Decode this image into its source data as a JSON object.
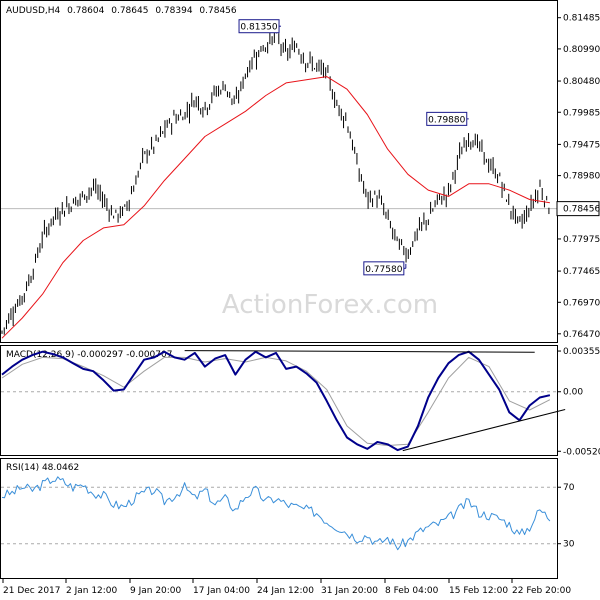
{
  "header": {
    "symbol": "AUDUSD,H4",
    "open": "0.78604",
    "high": "0.78645",
    "low": "0.78394",
    "close": "0.78456"
  },
  "watermark": "ActionForex.com",
  "colors": {
    "price_bars": "#000000",
    "ma": "#e8141a",
    "macd_line": "#00008b",
    "macd_signal": "#a0a0a0",
    "rsi": "#3a8fd9",
    "grid_dash": "#aaaaaa",
    "price_line": "#bbbbbb",
    "label_box": "#1a1a8c"
  },
  "chart_data": [
    {
      "type": "ohlc",
      "title": "AUDUSD,H4 0.78604 0.78645 0.78394 0.78456",
      "ylim": [
        0.7634,
        0.8175
      ],
      "y_ticks": [
        "0.81485",
        "0.80990",
        "0.80480",
        "0.79985",
        "0.79475",
        "0.78980",
        "0.78456",
        "0.77975",
        "0.77465",
        "0.76970",
        "0.76470"
      ],
      "current_price": "0.78456",
      "x_ticks": [
        "21 Dec 2017",
        "2 Jan 12:00",
        "9 Jan 20:00",
        "17 Jan 04:00",
        "24 Jan 12:00",
        "31 Jan 20:00",
        "8 Feb 04:00",
        "15 Feb 12:00",
        "22 Feb 20:00"
      ],
      "series": [
        {
          "name": "close",
          "x": [
            0,
            10,
            20,
            30,
            40,
            50,
            60,
            70,
            80,
            90,
            100,
            110,
            120,
            130,
            140,
            150,
            160,
            170,
            180,
            190,
            200,
            210,
            220,
            230,
            240,
            250,
            260,
            270,
            280,
            290,
            300,
            310,
            320,
            330,
            340,
            350,
            360,
            370,
            380,
            390,
            400,
            410,
            420,
            430,
            440,
            450,
            460,
            470,
            480,
            490,
            500,
            510,
            520,
            530,
            540
          ],
          "y": [
            0.765,
            0.7682,
            0.7705,
            0.7745,
            0.78,
            0.783,
            0.7845,
            0.7855,
            0.7865,
            0.788,
            0.786,
            0.7835,
            0.784,
            0.788,
            0.793,
            0.7945,
            0.797,
            0.799,
            0.7995,
            0.802,
            0.8005,
            0.803,
            0.804,
            0.801,
            0.806,
            0.809,
            0.8105,
            0.812,
            0.809,
            0.8105,
            0.808,
            0.807,
            0.806,
            0.801,
            0.7985,
            0.7915,
            0.786,
            0.7865,
            0.783,
            0.779,
            0.7775,
            0.781,
            0.783,
            0.786,
            0.787,
            0.7925,
            0.796,
            0.7945,
            0.7915,
            0.7895,
            0.785,
            0.782,
            0.7845,
            0.788,
            0.7846
          ]
        },
        {
          "name": "moving average",
          "x": [
            0,
            20,
            40,
            60,
            80,
            100,
            120,
            140,
            160,
            180,
            200,
            220,
            240,
            260,
            280,
            300,
            320,
            340,
            360,
            380,
            400,
            420,
            440,
            460,
            480,
            500,
            520,
            540
          ],
          "y": [
            0.764,
            0.7672,
            0.771,
            0.776,
            0.7795,
            0.7815,
            0.782,
            0.785,
            0.789,
            0.7925,
            0.796,
            0.798,
            0.8,
            0.8025,
            0.8045,
            0.805,
            0.8055,
            0.8035,
            0.7995,
            0.794,
            0.79,
            0.7875,
            0.7865,
            0.7885,
            0.7885,
            0.7875,
            0.786,
            0.7855
          ]
        }
      ],
      "annotations": [
        {
          "label": "0.81350",
          "x": 275,
          "y": 0.8135
        },
        {
          "label": "0.79880",
          "x": 460,
          "y": 0.7988
        },
        {
          "label": "0.77580",
          "x": 398,
          "y": 0.7758
        }
      ]
    },
    {
      "type": "line",
      "title": "MACD(12,26,9) -0.000297 -0.000707",
      "ylim": [
        -0.00562,
        0.004
      ],
      "y_ticks": [
        "0.003559",
        "0.00",
        "-0.005207"
      ],
      "series": [
        {
          "name": "MACD",
          "x": [
            0,
            10,
            20,
            30,
            40,
            50,
            60,
            70,
            80,
            90,
            100,
            110,
            120,
            130,
            140,
            150,
            160,
            170,
            180,
            190,
            200,
            210,
            220,
            230,
            240,
            250,
            260,
            270,
            280,
            290,
            300,
            310,
            320,
            330,
            340,
            350,
            360,
            370,
            380,
            390,
            400,
            410,
            420,
            430,
            440,
            450,
            460,
            470,
            480,
            490,
            500,
            510,
            520,
            530,
            540
          ],
          "y": [
            0.0015,
            0.0022,
            0.0028,
            0.0032,
            0.0035,
            0.0033,
            0.003,
            0.0025,
            0.002,
            0.0018,
            0.001,
            0.0001,
            0.0002,
            0.0015,
            0.0028,
            0.003,
            0.0035,
            0.003,
            0.0028,
            0.0034,
            0.0022,
            0.0029,
            0.0032,
            0.0015,
            0.0028,
            0.0035,
            0.003,
            0.0034,
            0.002,
            0.0022,
            0.0016,
            0.0008,
            -0.0008,
            -0.0025,
            -0.004,
            -0.0046,
            -0.005,
            -0.0044,
            -0.0046,
            -0.0051,
            -0.0048,
            -0.003,
            -0.0005,
            0.0012,
            0.0025,
            0.0032,
            0.0035,
            0.0028,
            0.0015,
            0.0002,
            -0.0018,
            -0.0025,
            -0.0012,
            -0.0005,
            -0.0003
          ]
        },
        {
          "name": "Signal",
          "x": [
            0,
            20,
            40,
            60,
            80,
            100,
            120,
            140,
            160,
            180,
            200,
            220,
            240,
            260,
            280,
            300,
            320,
            340,
            360,
            380,
            400,
            420,
            440,
            460,
            480,
            500,
            520,
            540
          ],
          "y": [
            0.0012,
            0.0024,
            0.003,
            0.0029,
            0.0022,
            0.0014,
            0.0004,
            0.0018,
            0.003,
            0.003,
            0.0026,
            0.0029,
            0.0026,
            0.003,
            0.0027,
            0.0018,
            0.0002,
            -0.003,
            -0.0045,
            -0.0047,
            -0.0046,
            -0.0018,
            0.0012,
            0.003,
            0.0022,
            -0.0008,
            -0.0016,
            -0.0007
          ]
        }
      ],
      "trendlines": [
        {
          "x": [
            180,
            525
          ],
          "y": [
            0.0036,
            0.00345
          ]
        },
        {
          "x": [
            395,
            555
          ],
          "y": [
            -0.00515,
            -0.00155
          ]
        }
      ]
    },
    {
      "type": "line",
      "title": "RSI(14) 48.0462",
      "ylim": [
        5,
        90
      ],
      "y_ticks": [
        "70",
        "30"
      ],
      "series": [
        {
          "name": "RSI",
          "x": [
            0,
            10,
            20,
            30,
            40,
            50,
            60,
            70,
            80,
            90,
            100,
            110,
            120,
            130,
            140,
            150,
            160,
            170,
            180,
            190,
            200,
            210,
            220,
            230,
            240,
            250,
            260,
            270,
            280,
            290,
            300,
            310,
            320,
            330,
            340,
            350,
            360,
            370,
            380,
            390,
            400,
            410,
            420,
            430,
            440,
            450,
            460,
            470,
            480,
            490,
            500,
            510,
            520,
            530,
            540
          ],
          "y": [
            64,
            66,
            70,
            68,
            72,
            76,
            74,
            70,
            72,
            66,
            64,
            58,
            56,
            62,
            66,
            68,
            60,
            64,
            70,
            62,
            68,
            58,
            62,
            54,
            64,
            68,
            60,
            62,
            58,
            56,
            54,
            52,
            46,
            42,
            38,
            34,
            36,
            30,
            34,
            28,
            32,
            38,
            42,
            44,
            48,
            54,
            60,
            52,
            50,
            48,
            44,
            36,
            42,
            54,
            48
          ]
        }
      ]
    }
  ]
}
